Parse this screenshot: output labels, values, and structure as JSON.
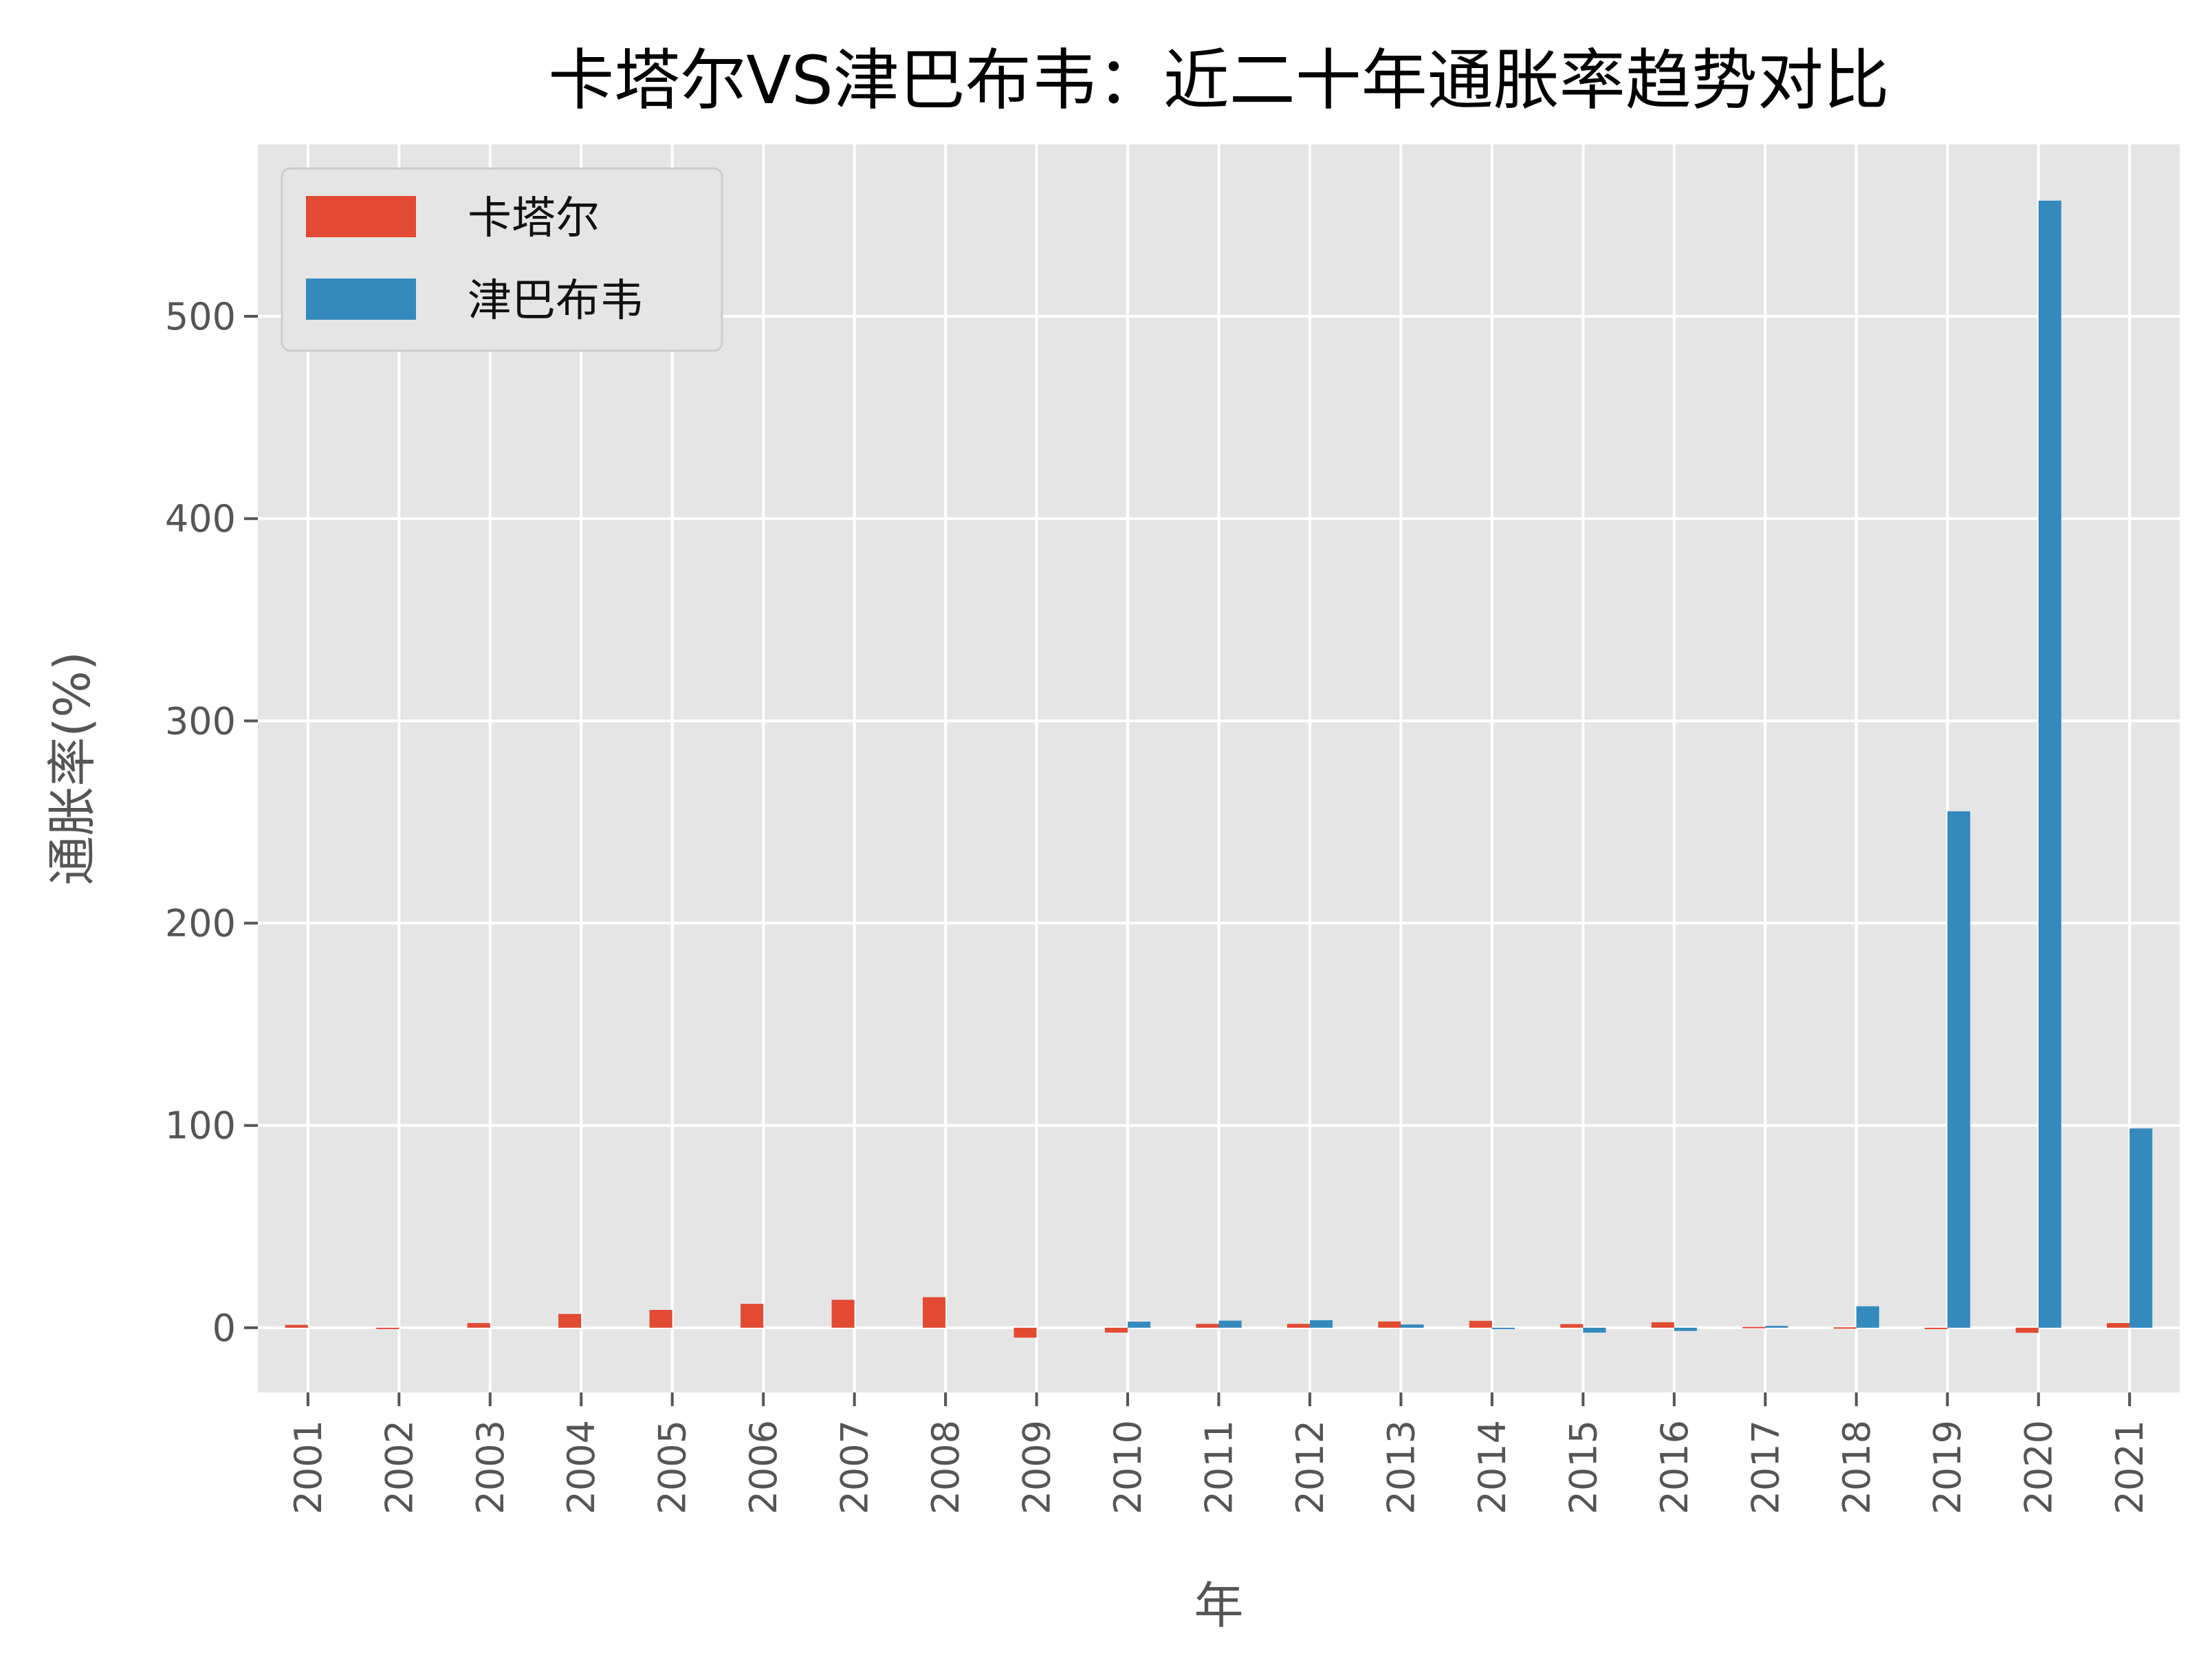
{
  "chart_data": {
    "type": "bar",
    "title": "卡塔尔VS津巴布韦：近二十年通胀率趋势对比",
    "xlabel": "年",
    "ylabel": "通胀率(%)",
    "categories": [
      "2001",
      "2002",
      "2003",
      "2004",
      "2005",
      "2006",
      "2007",
      "2008",
      "2009",
      "2010",
      "2011",
      "2012",
      "2013",
      "2014",
      "2015",
      "2016",
      "2017",
      "2018",
      "2019",
      "2020",
      "2021"
    ],
    "series": [
      {
        "name": "卡塔尔",
        "color": "#E24A33",
        "values": [
          1.4,
          -0.2,
          2.3,
          6.8,
          8.8,
          11.8,
          13.8,
          15.1,
          -4.9,
          -2.4,
          1.9,
          1.9,
          3.1,
          3.4,
          1.8,
          2.7,
          0.4,
          0.2,
          -0.7,
          -2.5,
          2.3
        ]
      },
      {
        "name": "津巴布韦",
        "color": "#348ABD",
        "values": [
          0,
          0,
          0,
          0,
          0,
          0,
          0,
          0,
          0,
          3.0,
          3.5,
          3.7,
          1.6,
          -0.2,
          -2.4,
          -1.6,
          0.9,
          10.6,
          255.3,
          557.2,
          98.5
        ]
      }
    ],
    "yticks": [
      0,
      100,
      200,
      300,
      400,
      500
    ],
    "ylim": [
      -32,
      585
    ],
    "grid": true,
    "legend_position": "top-left"
  }
}
